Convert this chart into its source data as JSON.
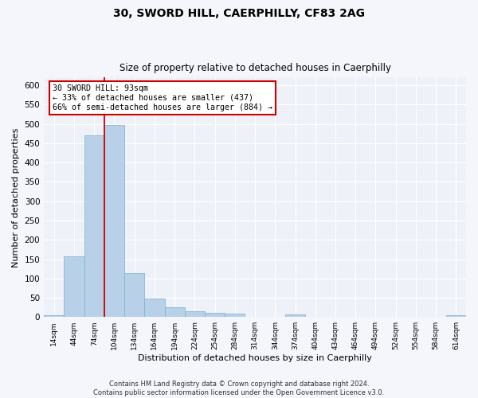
{
  "title": "30, SWORD HILL, CAERPHILLY, CF83 2AG",
  "subtitle": "Size of property relative to detached houses in Caerphilly",
  "xlabel": "Distribution of detached houses by size in Caerphilly",
  "ylabel": "Number of detached properties",
  "bar_color": "#b8d0e8",
  "bar_edge_color": "#7aaece",
  "categories": [
    "14sqm",
    "44sqm",
    "74sqm",
    "104sqm",
    "134sqm",
    "164sqm",
    "194sqm",
    "224sqm",
    "254sqm",
    "284sqm",
    "314sqm",
    "344sqm",
    "374sqm",
    "404sqm",
    "434sqm",
    "464sqm",
    "494sqm",
    "524sqm",
    "554sqm",
    "584sqm",
    "614sqm"
  ],
  "values": [
    5,
    158,
    470,
    497,
    115,
    49,
    25,
    15,
    12,
    9,
    0,
    0,
    6,
    0,
    0,
    0,
    0,
    0,
    0,
    0,
    5
  ],
  "ylim": [
    0,
    620
  ],
  "yticks": [
    0,
    50,
    100,
    150,
    200,
    250,
    300,
    350,
    400,
    450,
    500,
    550,
    600
  ],
  "vline_color": "#cc0000",
  "annotation_text": "30 SWORD HILL: 93sqm\n← 33% of detached houses are smaller (437)\n66% of semi-detached houses are larger (884) →",
  "annotation_box_color": "#ffffff",
  "annotation_box_edge": "#cc0000",
  "footer_text": "Contains HM Land Registry data © Crown copyright and database right 2024.\nContains public sector information licensed under the Open Government Licence v3.0.",
  "background_color": "#eef2f8",
  "grid_color": "#ffffff",
  "fig_background": "#f4f6fb"
}
